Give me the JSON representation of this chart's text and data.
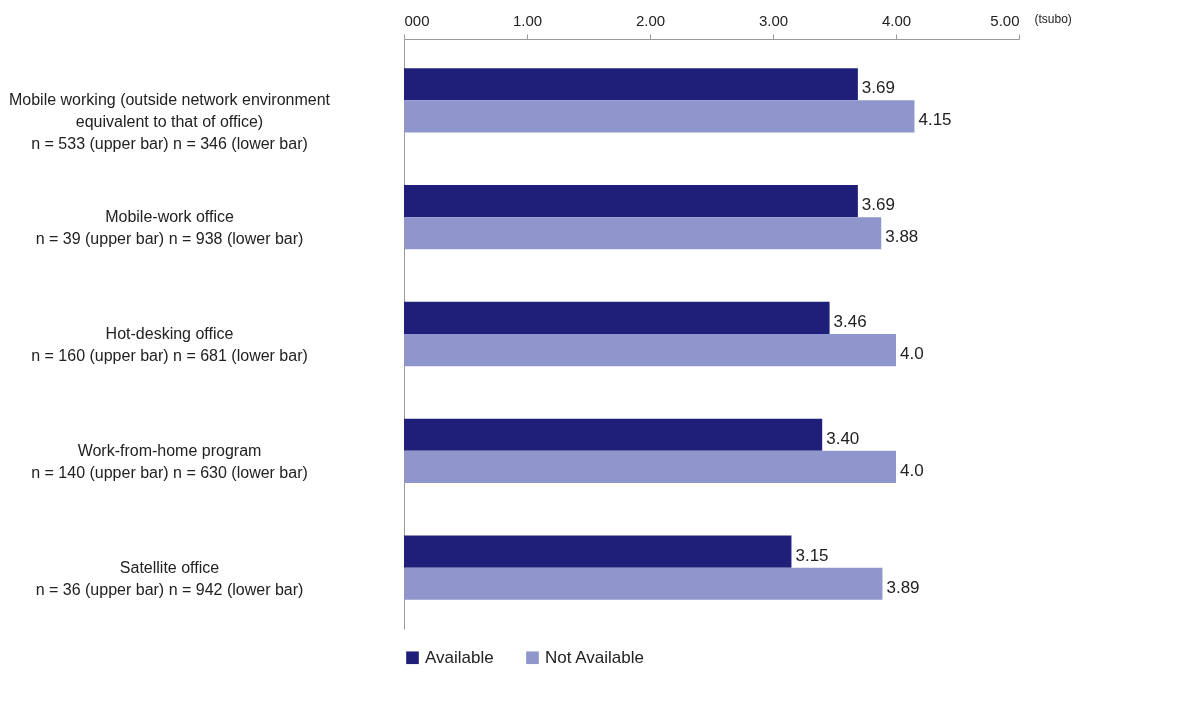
{
  "chart_data": {
    "type": "bar",
    "orientation": "horizontal",
    "xlabel": "(tsubo)",
    "categories": [
      "Mobile working (outside network environment\nequivalent to that of office)\nn = 533 (upper bar)   n = 346 (lower bar)",
      "Mobile-work office\nn = 39 (upper bar)   n = 938 (lower bar)",
      "Hot-desking office\nn = 160 (upper bar)   n = 681 (lower bar)",
      "Work-from-home program\nn = 140 (upper bar)  n = 630 (lower bar)",
      "Satellite office\nn = 36 (upper bar)   n = 942 (lower bar)"
    ],
    "series": [
      {
        "name": "Available",
        "color": "#1f1f7a",
        "values": [
          3.69,
          3.69,
          3.46,
          3.4,
          3.15
        ],
        "value_labels": [
          "3.69",
          "3.69",
          "3.46",
          "3.40",
          "3.15"
        ]
      },
      {
        "name": "Not Available",
        "color": "#8e96cc",
        "values": [
          4.15,
          3.88,
          4.0,
          4.0,
          3.89
        ],
        "value_labels": [
          "4.15",
          "3.88",
          "4.0",
          "4.0",
          "3.89"
        ]
      }
    ],
    "xlim": [
      0,
      5
    ],
    "xticks": [
      {
        "value": 0,
        "label": "000"
      },
      {
        "value": 1,
        "label": "1.00"
      },
      {
        "value": 2,
        "label": "2.00"
      },
      {
        "value": 3,
        "label": "3.00"
      },
      {
        "value": 4,
        "label": "4.00"
      },
      {
        "value": 5,
        "label": "5.00"
      }
    ],
    "grid": false,
    "legend": "bottom"
  }
}
